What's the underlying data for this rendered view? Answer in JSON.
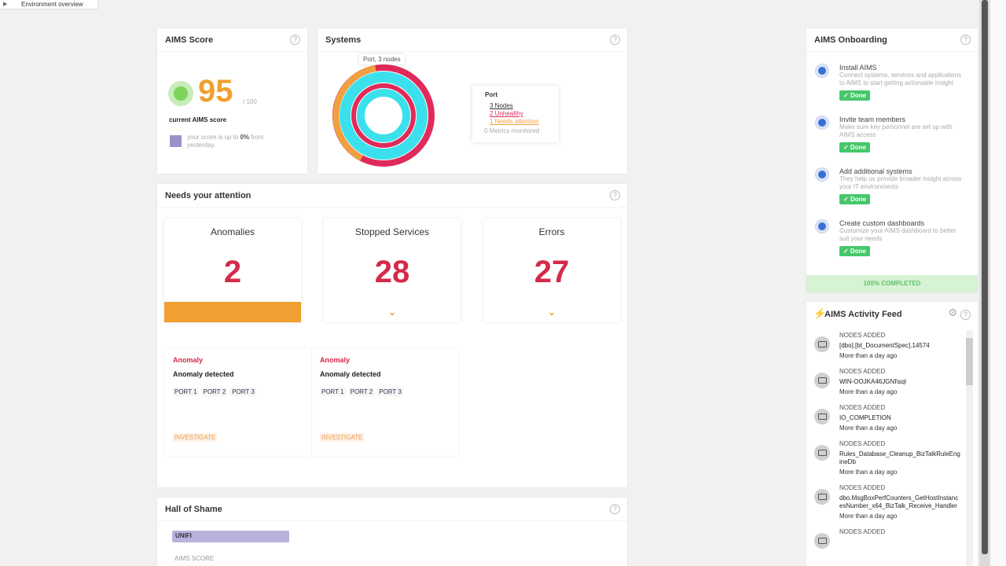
{
  "tab": {
    "title": "Environment overview"
  },
  "aims_score": {
    "title": "AIMS Score",
    "score": 95,
    "max": "/ 100",
    "label": "current AIMS score",
    "change": {
      "prefix": "your score is up to",
      "value": "0%",
      "suffix": "from yesterday."
    }
  },
  "systems": {
    "title": "Systems",
    "tooltip": "Port, 3 nodes",
    "legend": {
      "title": "Port",
      "items": [
        "3 Nodes",
        "2 Unhealthy",
        "1 Needs attention",
        "0 Metrics monitored"
      ]
    }
  },
  "attention": {
    "title": "Needs your attention",
    "cards": [
      {
        "label": "Anomalies",
        "count": 2
      },
      {
        "label": "Stopped Services",
        "count": 28
      },
      {
        "label": "Errors",
        "count": 27
      }
    ],
    "anomalies": [
      {
        "type": "Anomaly",
        "title": "Anomaly detected",
        "ports": [
          "PORT 1",
          "PORT 2",
          "PORT 3"
        ],
        "action": "INVESTIGATE"
      },
      {
        "type": "Anomaly",
        "title": "Anomaly detected",
        "ports": [
          "PORT 1",
          "PORT 2",
          "PORT 3"
        ],
        "action": "INVESTIGATE"
      }
    ]
  },
  "hall_of_shame": {
    "title": "Hall of Shame",
    "entity": "UNIFI",
    "metric": "AIMS SCORE"
  },
  "onboarding": {
    "title": "AIMS Onboarding",
    "steps": [
      {
        "title": "Install AIMS",
        "description": "Connect systems, services and applications to AIMS to start getting actionable insight",
        "status": "✓ Done"
      },
      {
        "title": "Invite team members",
        "description": "Make sure key personnel are set up with AIMS access",
        "status": "✓ Done"
      },
      {
        "title": "Add additional systems",
        "description": "They help us provide broader insight across your IT environments",
        "status": "✓ Done"
      },
      {
        "title": "Create custom dashboards",
        "description": "Customize your AIMS dashboard to better suit your needs",
        "status": "✓ Done"
      }
    ],
    "progress": "100% COMPLETED"
  },
  "activity_feed": {
    "title": "AIMS Activity Feed",
    "items": [
      {
        "type": "NODES ADDED",
        "name": "[dbo].[bt_DocumentSpec].14574",
        "time": "More than a day ago"
      },
      {
        "type": "NODES ADDED",
        "name": "WIN-OOJKA46JGNI\\sql",
        "time": "More than a day ago"
      },
      {
        "type": "NODES ADDED",
        "name": "IO_COMPLETION",
        "time": "More than a day ago"
      },
      {
        "type": "NODES ADDED",
        "name": "Rules_Database_Cleanup_BizTalkRuleEngineDb",
        "time": "More than a day ago"
      },
      {
        "type": "NODES ADDED",
        "name": "dbo.MsgBoxPerfCounters_GetHostInstancesNumber_x64_BizTalk_Receive_Handler",
        "time": "More than a day ago"
      },
      {
        "type": "NODES ADDED"
      }
    ]
  }
}
